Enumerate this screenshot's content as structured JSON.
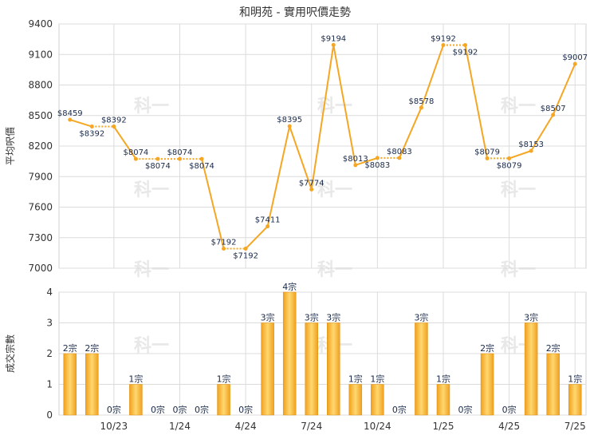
{
  "chart_data": [
    {
      "type": "line",
      "title": "和明苑 - 實用呎價走勢",
      "ylabel": "平均呎價",
      "ylim": [
        7000,
        9400
      ],
      "yticks": [
        7000,
        7300,
        7600,
        7900,
        8200,
        8500,
        8800,
        9100,
        9400
      ],
      "xticks": [
        "10/23",
        "1/24",
        "4/24",
        "7/24",
        "10/24",
        "1/25",
        "4/25",
        "7/25"
      ],
      "grid": true,
      "line_color": "#f5a623",
      "series": [
        {
          "values": [
            8459,
            8392,
            8392,
            8074,
            8074,
            8074,
            8074,
            7192,
            7192,
            7411,
            8395,
            7774,
            9194,
            8013,
            8083,
            8083,
            8578,
            9192,
            9192,
            8079,
            8079,
            8153,
            8507,
            9007
          ],
          "labels": [
            "$8459",
            "$8392",
            "$8392",
            "$8074",
            "$8074",
            "$8074",
            "$8074",
            "$7192",
            "$7192",
            "$7411",
            "$8395",
            "$7774",
            "$9194",
            "$8013",
            "$8083",
            "$8083",
            "$8578",
            "$9192",
            "$9192",
            "$8079",
            "$8079",
            "$8153",
            "$8507",
            "$9007"
          ]
        }
      ]
    },
    {
      "type": "bar",
      "ylabel": "成交宗數",
      "ylim": [
        0,
        4
      ],
      "yticks": [
        0,
        1,
        2,
        3,
        4
      ],
      "xticks": [
        "10/23",
        "1/24",
        "4/24",
        "7/24",
        "10/24",
        "1/25",
        "4/25",
        "7/25"
      ],
      "grid": true,
      "bar_color": "#f5a623",
      "series": [
        {
          "values": [
            2,
            2,
            0,
            1,
            0,
            0,
            0,
            1,
            0,
            3,
            4,
            3,
            3,
            1,
            1,
            0,
            3,
            1,
            0,
            2,
            0,
            3,
            2,
            1
          ],
          "labels": [
            "2宗",
            "2宗",
            "0宗",
            "1宗",
            "0宗",
            "0宗",
            "0宗",
            "1宗",
            "0宗",
            "3宗",
            "4宗",
            "3宗",
            "3宗",
            "1宗",
            "1宗",
            "0宗",
            "3宗",
            "1宗",
            "0宗",
            "2宗",
            "0宗",
            "3宗",
            "2宗",
            "1宗"
          ]
        }
      ]
    }
  ],
  "watermark": "科一"
}
